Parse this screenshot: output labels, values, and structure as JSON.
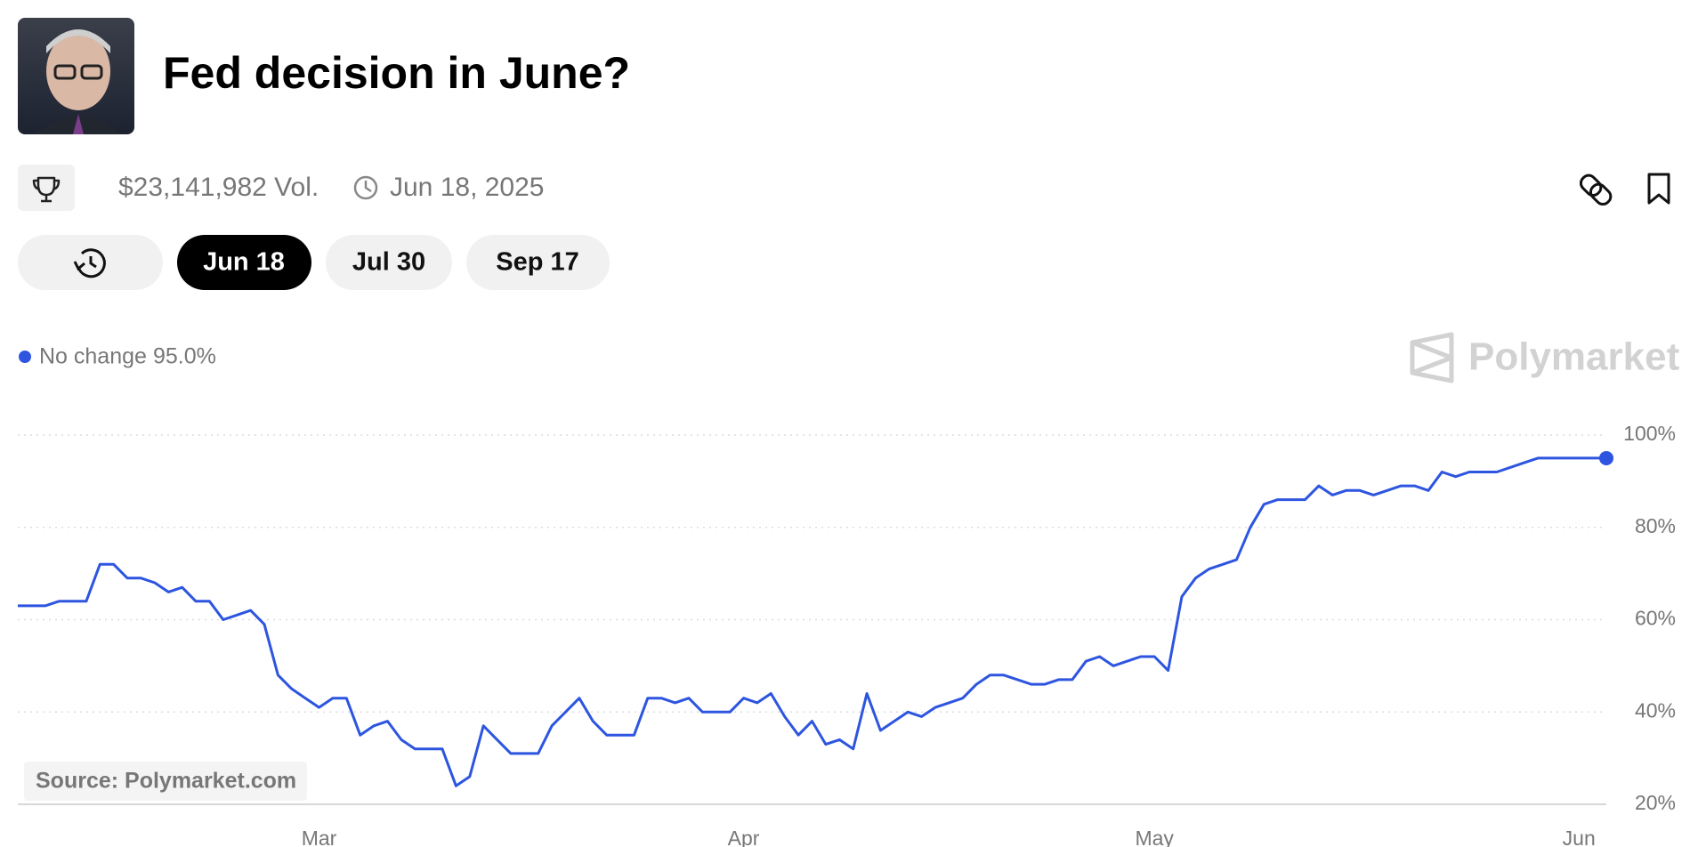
{
  "header": {
    "title": "Fed decision in June?",
    "volume": "$23,141,982 Vol.",
    "date": "Jun 18, 2025"
  },
  "tabs": [
    "Jun 18",
    "Jul 30",
    "Sep 17"
  ],
  "source": "Source: Polymarket.com",
  "watermark": "Polymarket",
  "chart_data": {
    "type": "line",
    "series": [
      {
        "name": "No change",
        "color": "#2d55e0",
        "current_label": "95.0%",
        "values": [
          63,
          63,
          63,
          64,
          64,
          64,
          72,
          72,
          69,
          69,
          68,
          66,
          67,
          64,
          64,
          60,
          61,
          62,
          59,
          48,
          45,
          43,
          41,
          43,
          43,
          35,
          37,
          38,
          34,
          32,
          32,
          32,
          24,
          26,
          37,
          34,
          31,
          31,
          31,
          37,
          40,
          43,
          38,
          35,
          35,
          35,
          43,
          43,
          42,
          43,
          40,
          40,
          40,
          43,
          42,
          44,
          39,
          35,
          38,
          33,
          34,
          32,
          44,
          36,
          38,
          40,
          39,
          41,
          42,
          43,
          46,
          48,
          48,
          47,
          46,
          46,
          47,
          47,
          51,
          52,
          50,
          51,
          52,
          52,
          49,
          65,
          69,
          71,
          72,
          73,
          80,
          85,
          86,
          86,
          86,
          89,
          87,
          88,
          88,
          87,
          88,
          89,
          89,
          88,
          92,
          91,
          92,
          92,
          92,
          93,
          94,
          95,
          95,
          95,
          95,
          95,
          95
        ]
      }
    ],
    "xlim": [
      0,
      116
    ],
    "xticks": [
      {
        "value": 22,
        "label": "Mar"
      },
      {
        "value": 53,
        "label": "Apr"
      },
      {
        "value": 83,
        "label": "May"
      },
      {
        "value": 114,
        "label": "Jun"
      }
    ],
    "ylim": [
      20,
      100
    ],
    "yticks": [
      {
        "value": 20,
        "label": "20%"
      },
      {
        "value": 40,
        "label": "40%"
      },
      {
        "value": 60,
        "label": "60%"
      },
      {
        "value": 80,
        "label": "80%"
      },
      {
        "value": 100,
        "label": "100%"
      }
    ],
    "grid": true
  }
}
